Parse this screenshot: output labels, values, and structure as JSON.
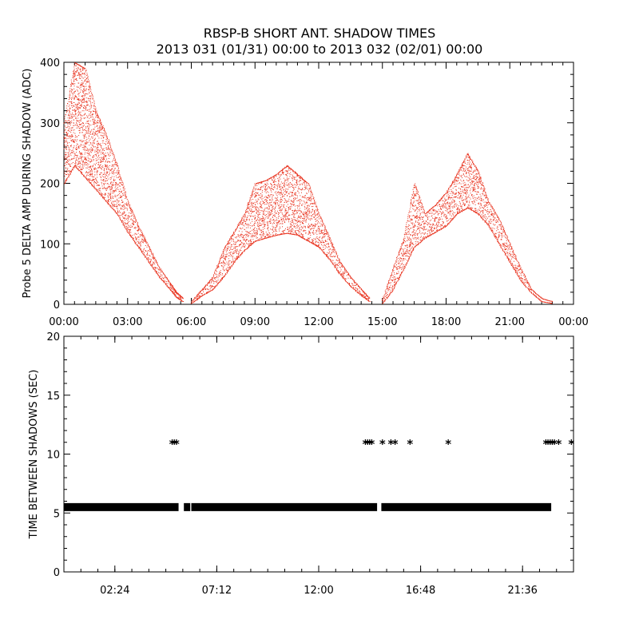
{
  "title": "RBSP-B SHORT ANT. SHADOW TIMES",
  "subtitle": "2013 031 (01/31) 00:00 to 2013 032 (02/01) 00:00",
  "colors": {
    "series_top": "#e8321e",
    "series_bottom": "#000000",
    "axes": "#000000"
  },
  "chart_data": [
    {
      "type": "scatter",
      "ylabel": "Probe 5 DELTA AMP DURING SHADOW (ADC)",
      "xlabel": "",
      "xlim": [
        0,
        24
      ],
      "ylim": [
        0,
        400
      ],
      "x_tick_labels": [
        "00:00",
        "03:00",
        "06:00",
        "09:00",
        "12:00",
        "15:00",
        "18:00",
        "21:00",
        "00:00"
      ],
      "y_tick_labels": [
        "0",
        "100",
        "200",
        "300",
        "400"
      ],
      "series": [
        {
          "color": "#e8321e",
          "band_x": [
            0.0,
            0.5,
            1.0,
            1.5,
            2.0,
            2.5,
            3.0,
            3.5,
            4.0,
            4.5,
            5.0,
            5.3,
            5.6
          ],
          "band_low": [
            200,
            230,
            210,
            190,
            170,
            150,
            120,
            95,
            70,
            45,
            25,
            12,
            5
          ],
          "band_high": [
            300,
            400,
            390,
            320,
            280,
            230,
            170,
            130,
            95,
            60,
            35,
            20,
            10
          ]
        },
        {
          "color": "#e8321e",
          "band_x": [
            6.0,
            6.5,
            7.0,
            7.5,
            8.0,
            8.5,
            9.0,
            9.5,
            10.0,
            10.5,
            11.0,
            11.5,
            12.0,
            12.5,
            13.0,
            13.5,
            14.0,
            14.4
          ],
          "band_low": [
            2,
            15,
            25,
            45,
            70,
            90,
            105,
            110,
            115,
            118,
            115,
            105,
            95,
            75,
            50,
            30,
            15,
            5
          ],
          "band_high": [
            5,
            25,
            45,
            90,
            120,
            150,
            200,
            205,
            215,
            230,
            215,
            200,
            150,
            110,
            70,
            45,
            25,
            10
          ]
        },
        {
          "color": "#e8321e",
          "band_x": [
            15.0,
            15.5,
            16.0,
            16.5,
            17.0,
            17.5,
            18.0,
            18.5,
            19.0,
            19.5,
            20.0,
            20.5,
            21.0,
            21.5,
            22.0,
            22.5,
            23.0
          ],
          "band_low": [
            2,
            25,
            60,
            95,
            110,
            120,
            130,
            150,
            160,
            150,
            130,
            100,
            70,
            40,
            20,
            5,
            2
          ],
          "band_high": [
            8,
            60,
            110,
            200,
            150,
            165,
            185,
            215,
            250,
            220,
            170,
            140,
            100,
            60,
            25,
            10,
            5
          ]
        }
      ]
    },
    {
      "type": "scatter",
      "ylabel": "TIME BETWEEN SHADOWS (SEC)",
      "xlabel": "",
      "xlim": [
        0,
        24
      ],
      "ylim": [
        0,
        20
      ],
      "x_tick_labels": [
        "02:24",
        "07:12",
        "12:00",
        "16:48",
        "21:36"
      ],
      "y_tick_labels": [
        "0",
        "5",
        "10",
        "15",
        "20"
      ],
      "series": [
        {
          "color": "#000000",
          "marker": "*",
          "segments_y": 5.5,
          "segments": [
            [
              0.0,
              5.4
            ],
            [
              5.65,
              5.95
            ],
            [
              6.0,
              14.75
            ],
            [
              14.95,
              22.95
            ]
          ],
          "points": [
            [
              5.1,
              11.0
            ],
            [
              5.2,
              11.0
            ],
            [
              5.3,
              11.0
            ],
            [
              14.2,
              11.0
            ],
            [
              14.3,
              11.0
            ],
            [
              14.4,
              11.0
            ],
            [
              14.5,
              11.0
            ],
            [
              15.0,
              11.0
            ],
            [
              15.4,
              11.0
            ],
            [
              15.6,
              11.0
            ],
            [
              16.3,
              11.0
            ],
            [
              18.1,
              11.0
            ],
            [
              18.5,
              5.5
            ],
            [
              18.6,
              5.5
            ],
            [
              22.7,
              11.0
            ],
            [
              22.8,
              11.0
            ],
            [
              22.9,
              11.0
            ],
            [
              23.0,
              11.0
            ],
            [
              23.1,
              11.0
            ],
            [
              23.3,
              11.0
            ],
            [
              23.9,
              11.0
            ]
          ]
        }
      ]
    }
  ]
}
